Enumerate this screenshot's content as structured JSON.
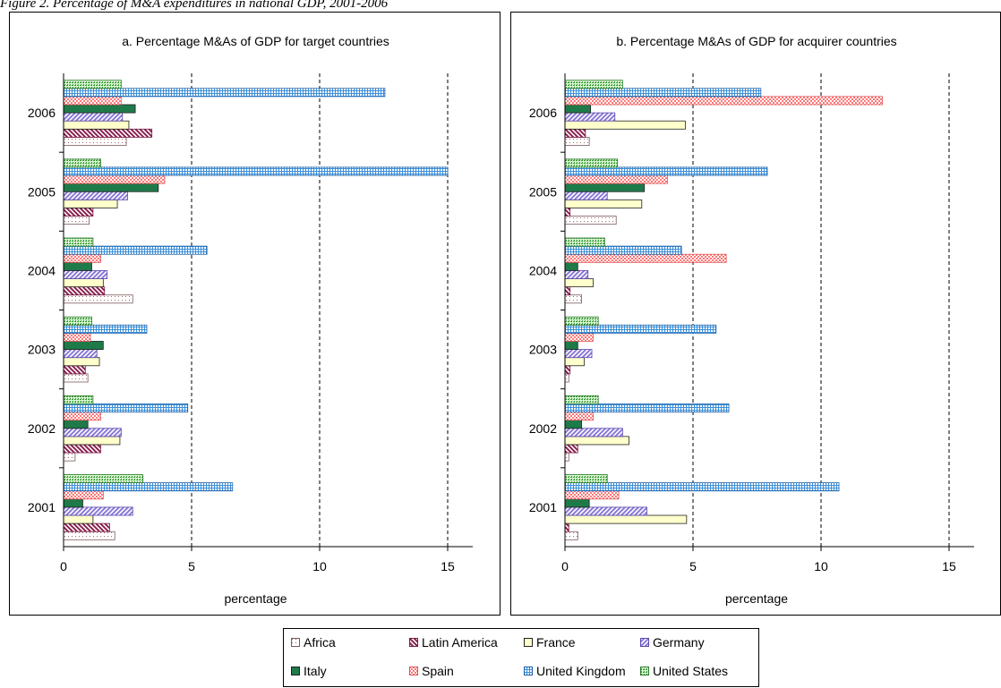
{
  "caption": "Figure 2. Percentage of M&A expenditures in national GDP, 2001-2006",
  "legend": [
    {
      "name": "Africa",
      "fill": "#ffffff",
      "pattern": "dots"
    },
    {
      "name": "Latin America",
      "fill": "#9b3060",
      "pattern": "diag"
    },
    {
      "name": "France",
      "fill": "#ffffcc",
      "pattern": "solid"
    },
    {
      "name": "Germany",
      "fill": "#b8a8f0",
      "pattern": "diagrev"
    },
    {
      "name": "Italy",
      "fill": "#1f7a4a",
      "pattern": "solid"
    },
    {
      "name": "Spain",
      "fill": "#ff9999",
      "pattern": "checker"
    },
    {
      "name": "United Kingdom",
      "fill": "#7fc0ee",
      "pattern": "grid"
    },
    {
      "name": "United States",
      "fill": "#b6e8a8",
      "pattern": "greendots"
    }
  ],
  "chart_data": [
    {
      "type": "bar",
      "orientation": "horizontal",
      "title": "a. Percentage M&As of GDP for target countries",
      "xlabel": "percentage",
      "ylabel": "",
      "xlim": [
        0,
        15
      ],
      "xticks": [
        0,
        5,
        10,
        15
      ],
      "grid": "vertical dashed",
      "categories": [
        "2001",
        "2002",
        "2003",
        "2004",
        "2005",
        "2006"
      ],
      "series": [
        {
          "name": "Africa",
          "values": [
            2.0,
            0.45,
            0.95,
            2.7,
            1.0,
            2.45
          ]
        },
        {
          "name": "Latin America",
          "values": [
            1.8,
            1.45,
            0.85,
            1.6,
            1.15,
            3.45
          ]
        },
        {
          "name": "France",
          "values": [
            1.15,
            2.2,
            1.4,
            1.55,
            2.1,
            2.55
          ]
        },
        {
          "name": "Germany",
          "values": [
            2.7,
            2.25,
            1.3,
            1.7,
            2.5,
            2.3
          ]
        },
        {
          "name": "Italy",
          "values": [
            0.75,
            0.95,
            1.55,
            1.1,
            3.7,
            2.8
          ]
        },
        {
          "name": "Spain",
          "values": [
            1.55,
            1.45,
            1.05,
            1.45,
            3.95,
            2.25
          ]
        },
        {
          "name": "United Kingdom",
          "values": [
            6.6,
            4.85,
            3.25,
            5.6,
            15.0,
            12.55
          ]
        },
        {
          "name": "United States",
          "values": [
            3.1,
            1.15,
            1.1,
            1.15,
            1.45,
            2.25
          ]
        }
      ]
    },
    {
      "type": "bar",
      "orientation": "horizontal",
      "title": "b. Percentage M&As of GDP for acquirer countries",
      "xlabel": "percentage",
      "ylabel": "",
      "xlim": [
        0,
        15
      ],
      "xticks": [
        0,
        5,
        10,
        15
      ],
      "grid": "vertical dashed",
      "categories": [
        "2001",
        "2002",
        "2003",
        "2004",
        "2005",
        "2006"
      ],
      "series": [
        {
          "name": "Africa",
          "values": [
            0.5,
            0.15,
            0.15,
            0.65,
            2.0,
            0.95
          ]
        },
        {
          "name": "Latin America",
          "values": [
            0.15,
            0.5,
            0.2,
            0.2,
            0.2,
            0.8
          ]
        },
        {
          "name": "France",
          "values": [
            4.75,
            2.5,
            0.75,
            1.1,
            3.0,
            4.7
          ]
        },
        {
          "name": "Germany",
          "values": [
            3.2,
            2.25,
            1.05,
            0.9,
            1.65,
            1.95
          ]
        },
        {
          "name": "Italy",
          "values": [
            0.95,
            0.65,
            0.5,
            0.5,
            3.1,
            1.0
          ]
        },
        {
          "name": "Spain",
          "values": [
            2.1,
            1.1,
            1.1,
            6.3,
            4.0,
            12.4
          ]
        },
        {
          "name": "United Kingdom",
          "values": [
            10.7,
            6.4,
            5.9,
            4.55,
            7.9,
            7.65
          ]
        },
        {
          "name": "United States",
          "values": [
            1.65,
            1.3,
            1.3,
            1.55,
            2.05,
            2.25
          ]
        }
      ]
    }
  ]
}
